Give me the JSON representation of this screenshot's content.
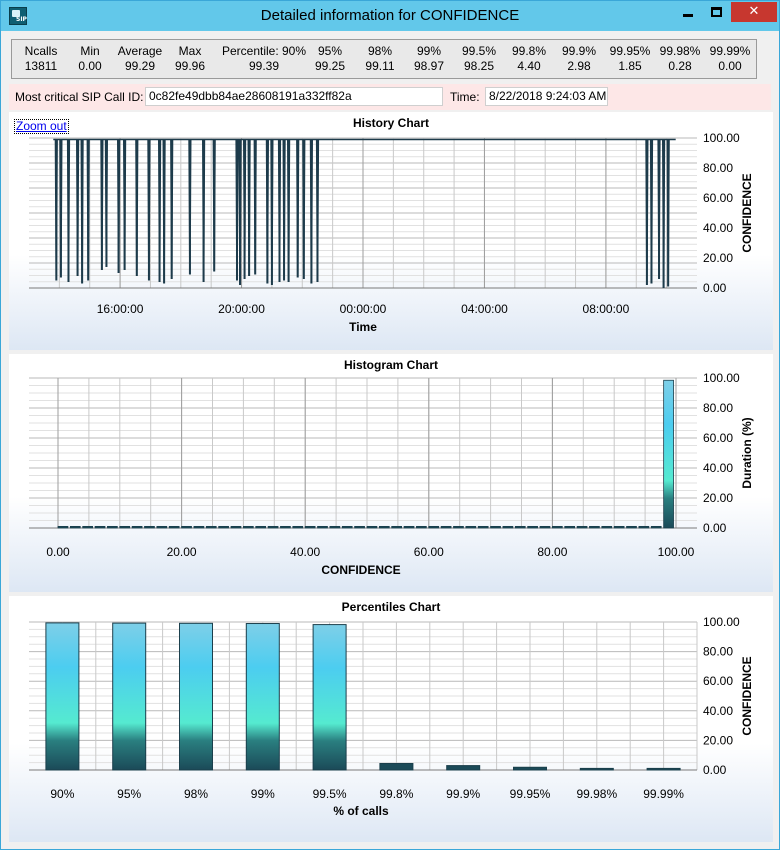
{
  "window": {
    "title": "Detailed information for CONFIDENCE",
    "icon": "sip-app-icon",
    "icon_text": "SIP",
    "buttons": {
      "minimize": "minimize-icon",
      "maximize": "maximize-icon",
      "close": "close-icon"
    },
    "close_glyph": "✕"
  },
  "stats": {
    "columns": [
      {
        "header": "Ncalls",
        "value": "13811"
      },
      {
        "header": "Min",
        "value": "0.00"
      },
      {
        "header": "Average",
        "value": "99.29"
      },
      {
        "header": "Max",
        "value": "99.96"
      },
      {
        "header": "Percentile: 90%",
        "value": "99.39"
      },
      {
        "header": "95%",
        "value": "99.25"
      },
      {
        "header": "98%",
        "value": "99.11"
      },
      {
        "header": "99%",
        "value": "98.97"
      },
      {
        "header": "99.5%",
        "value": "98.25"
      },
      {
        "header": "99.8%",
        "value": "4.40"
      },
      {
        "header": "99.9%",
        "value": "2.98"
      },
      {
        "header": "99.95%",
        "value": "1.85"
      },
      {
        "header": "99.98%",
        "value": "0.28"
      },
      {
        "header": "99.99%",
        "value": "0.00"
      }
    ]
  },
  "sip": {
    "call_id_label": "Most critical SIP Call ID:",
    "call_id_value": "0c82fe49dbb84ae28608191a332ff82a",
    "time_label": "Time:",
    "time_value": "8/22/2018 9:24:03 AM"
  },
  "colors": {
    "accent": "#62c8ea",
    "bar_top": "#7ecfe8",
    "bar_mid": "#55ead0",
    "bar_dark": "#1b4a58",
    "line": "#1d3b4b"
  },
  "chart_data": [
    {
      "type": "line",
      "title": "History Chart",
      "xlabel": "Time",
      "ylabel": "CONFIDENCE",
      "zoom_out_label": "Zoom out",
      "x_ticks": [
        "16:00:00",
        "20:00:00",
        "00:00:00",
        "04:00:00",
        "08:00:00"
      ],
      "y_ticks": [
        "0.00",
        "20.00",
        "40.00",
        "60.00",
        "80.00",
        "100.00"
      ],
      "ylim": [
        0,
        100
      ],
      "x_range_hours": [
        13.0,
        34.5
      ],
      "baseline": 99.0,
      "dips": [
        {
          "t": 13.9,
          "v": 5
        },
        {
          "t": 14.05,
          "v": 7
        },
        {
          "t": 14.3,
          "v": 4
        },
        {
          "t": 14.6,
          "v": 8
        },
        {
          "t": 14.75,
          "v": 3
        },
        {
          "t": 14.95,
          "v": 5
        },
        {
          "t": 15.4,
          "v": 12
        },
        {
          "t": 15.55,
          "v": 14
        },
        {
          "t": 15.95,
          "v": 10
        },
        {
          "t": 16.15,
          "v": 12
        },
        {
          "t": 16.55,
          "v": 8
        },
        {
          "t": 16.95,
          "v": 5
        },
        {
          "t": 17.3,
          "v": 4
        },
        {
          "t": 17.45,
          "v": 3
        },
        {
          "t": 17.7,
          "v": 6
        },
        {
          "t": 18.3,
          "v": 9
        },
        {
          "t": 18.75,
          "v": 4
        },
        {
          "t": 19.1,
          "v": 11
        },
        {
          "t": 19.85,
          "v": 5
        },
        {
          "t": 19.95,
          "v": 2
        },
        {
          "t": 20.1,
          "v": 6
        },
        {
          "t": 20.25,
          "v": 8
        },
        {
          "t": 20.45,
          "v": 9
        },
        {
          "t": 20.85,
          "v": 3
        },
        {
          "t": 21.0,
          "v": 2
        },
        {
          "t": 21.25,
          "v": 4
        },
        {
          "t": 21.4,
          "v": 5
        },
        {
          "t": 21.55,
          "v": 4
        },
        {
          "t": 21.85,
          "v": 7
        },
        {
          "t": 22.05,
          "v": 6
        },
        {
          "t": 22.3,
          "v": 3
        },
        {
          "t": 22.5,
          "v": 4
        },
        {
          "t": 33.35,
          "v": 2
        },
        {
          "t": 33.5,
          "v": 3
        },
        {
          "t": 33.75,
          "v": 6
        },
        {
          "t": 33.9,
          "v": 0
        },
        {
          "t": 34.05,
          "v": 1
        }
      ]
    },
    {
      "type": "bar",
      "title": "Histogram Chart",
      "xlabel": "CONFIDENCE",
      "ylabel": "Duration (%)",
      "x_ticks": [
        "0.00",
        "20.00",
        "40.00",
        "60.00",
        "80.00",
        "100.00"
      ],
      "y_ticks": [
        "0.00",
        "20.00",
        "40.00",
        "60.00",
        "80.00",
        "100.00"
      ],
      "xlim": [
        0,
        100
      ],
      "ylim": [
        0,
        100
      ],
      "bins": [
        {
          "x": 0,
          "v": 0.3
        },
        {
          "x": 2,
          "v": 0.6
        },
        {
          "x": 4,
          "v": 0.2
        },
        {
          "x": 6,
          "v": 0.2
        },
        {
          "x": 8,
          "v": 0.2
        },
        {
          "x": 10,
          "v": 0.2
        },
        {
          "x": 12,
          "v": 0.2
        },
        {
          "x": 14,
          "v": 0.2
        },
        {
          "x": 16,
          "v": 0.2
        },
        {
          "x": 18,
          "v": 0.2
        },
        {
          "x": 20,
          "v": 0.2
        },
        {
          "x": 22,
          "v": 0.2
        },
        {
          "x": 24,
          "v": 0.2
        },
        {
          "x": 26,
          "v": 0.2
        },
        {
          "x": 28,
          "v": 0.2
        },
        {
          "x": 30,
          "v": 0.2
        },
        {
          "x": 32,
          "v": 0.2
        },
        {
          "x": 34,
          "v": 0.2
        },
        {
          "x": 36,
          "v": 0.2
        },
        {
          "x": 38,
          "v": 0.2
        },
        {
          "x": 40,
          "v": 0.2
        },
        {
          "x": 42,
          "v": 0.2
        },
        {
          "x": 44,
          "v": 0.2
        },
        {
          "x": 46,
          "v": 0.2
        },
        {
          "x": 48,
          "v": 0.2
        },
        {
          "x": 50,
          "v": 0.2
        },
        {
          "x": 52,
          "v": 0.2
        },
        {
          "x": 54,
          "v": 0.2
        },
        {
          "x": 56,
          "v": 0.2
        },
        {
          "x": 58,
          "v": 0.2
        },
        {
          "x": 60,
          "v": 0.2
        },
        {
          "x": 62,
          "v": 0.2
        },
        {
          "x": 64,
          "v": 0.2
        },
        {
          "x": 66,
          "v": 0.2
        },
        {
          "x": 68,
          "v": 0.2
        },
        {
          "x": 70,
          "v": 0.2
        },
        {
          "x": 72,
          "v": 0.2
        },
        {
          "x": 74,
          "v": 0.2
        },
        {
          "x": 76,
          "v": 0.2
        },
        {
          "x": 78,
          "v": 0.2
        },
        {
          "x": 80,
          "v": 0.2
        },
        {
          "x": 82,
          "v": 0.2
        },
        {
          "x": 84,
          "v": 0.2
        },
        {
          "x": 86,
          "v": 0.2
        },
        {
          "x": 88,
          "v": 0.2
        },
        {
          "x": 90,
          "v": 0.2
        },
        {
          "x": 92,
          "v": 0.2
        },
        {
          "x": 94,
          "v": 0.2
        },
        {
          "x": 96,
          "v": 0.3
        },
        {
          "x": 98,
          "v": 98.5
        }
      ]
    },
    {
      "type": "bar",
      "title": "Percentiles Chart",
      "xlabel": "% of calls",
      "ylabel": "CONFIDENCE",
      "categories": [
        "90%",
        "95%",
        "98%",
        "99%",
        "99.5%",
        "99.8%",
        "99.9%",
        "99.95%",
        "99.98%",
        "99.99%"
      ],
      "values": [
        99.39,
        99.25,
        99.11,
        98.97,
        98.25,
        4.4,
        2.98,
        1.85,
        0.28,
        0.0
      ],
      "y_ticks": [
        "0.00",
        "20.00",
        "40.00",
        "60.00",
        "80.00",
        "100.00"
      ],
      "ylim": [
        0,
        100
      ]
    }
  ]
}
